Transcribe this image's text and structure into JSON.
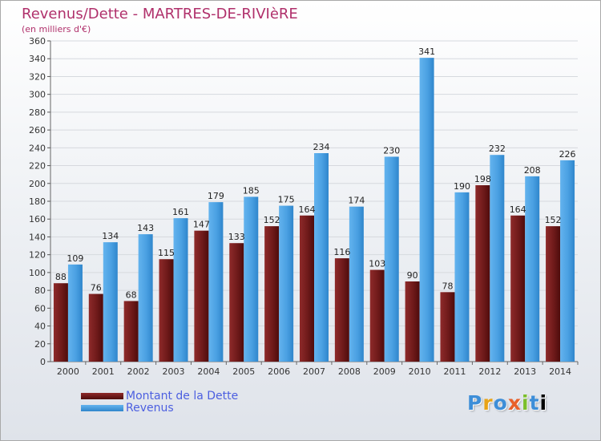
{
  "title": "Revenus/Dette - MARTRES-DE-RIVIèRE",
  "subtitle": "(en milliers d'€)",
  "logo": {
    "text": "Proxiti",
    "letters": [
      "P",
      "r",
      "o",
      "x",
      "i",
      "t",
      "i"
    ]
  },
  "legend": [
    {
      "label": "Montant de la Dette",
      "color": "#7a1f1f"
    },
    {
      "label": "Revenus",
      "color": "#4ea3e3"
    }
  ],
  "chart_data": {
    "type": "bar",
    "categories": [
      "2000",
      "2001",
      "2002",
      "2003",
      "2004",
      "2005",
      "2006",
      "2007",
      "2008",
      "2009",
      "2010",
      "2011",
      "2012",
      "2013",
      "2014"
    ],
    "series": [
      {
        "name": "Montant de la Dette",
        "color": "#7a1f1f",
        "values": [
          88,
          76,
          68,
          115,
          147,
          133,
          152,
          164,
          116,
          103,
          90,
          78,
          198,
          164,
          152
        ]
      },
      {
        "name": "Revenus",
        "color": "#4ea3e3",
        "values": [
          109,
          134,
          143,
          161,
          179,
          185,
          175,
          234,
          174,
          230,
          341,
          190,
          232,
          208,
          226
        ]
      }
    ],
    "ylim": [
      0,
      360
    ],
    "yticks": [
      0,
      20,
      40,
      60,
      80,
      100,
      120,
      140,
      160,
      180,
      200,
      220,
      240,
      260,
      280,
      300,
      320,
      340,
      360
    ],
    "grid": true,
    "xlabel": "",
    "ylabel": ""
  }
}
